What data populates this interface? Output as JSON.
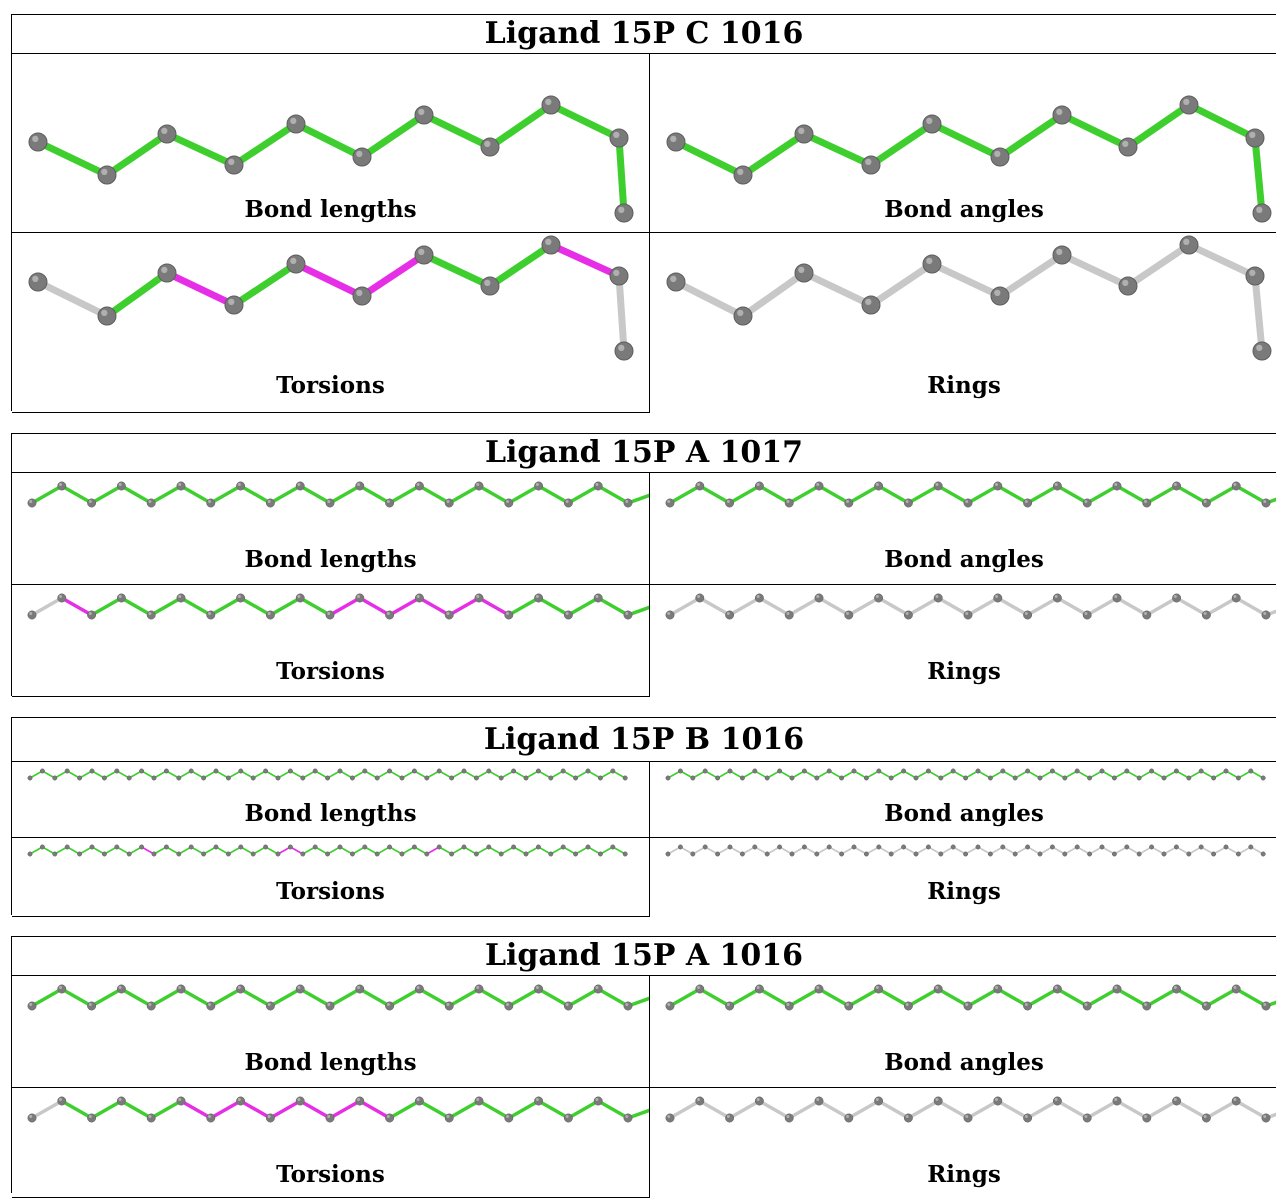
{
  "colors": {
    "ok": "#3ecf2e",
    "outlier": "#e62ee6",
    "neutral": "#c8c8c8",
    "atom": "#7a7a7a",
    "atom_highlight": "#b0b0b0"
  },
  "ligands": [
    {
      "title": "Ligand 15P C 1016",
      "panels": [
        {
          "label": "Bond lengths",
          "bond_colors": [
            "ok",
            "ok",
            "ok",
            "ok",
            "ok",
            "ok",
            "ok",
            "ok",
            "ok"
          ]
        },
        {
          "label": "Bond angles",
          "bond_colors": [
            "ok",
            "ok",
            "ok",
            "ok",
            "ok",
            "ok",
            "ok",
            "ok",
            "ok"
          ]
        },
        {
          "label": "Torsions",
          "bond_colors": [
            "neutral",
            "ok",
            "outlier",
            "ok",
            "outlier",
            "outlier",
            "ok",
            "ok",
            "outlier",
            "neutral"
          ]
        },
        {
          "label": "Rings",
          "bond_colors": [
            "neutral",
            "neutral",
            "neutral",
            "neutral",
            "neutral",
            "neutral",
            "neutral",
            "neutral",
            "neutral",
            "neutral"
          ]
        }
      ]
    },
    {
      "title": "Ligand 15P A 1017",
      "panels": [
        {
          "label": "Bond lengths",
          "bond_colors": [
            "ok"
          ]
        },
        {
          "label": "Bond angles",
          "bond_colors": [
            "ok"
          ]
        },
        {
          "label": "Torsions",
          "bond_colors": [
            "neutral",
            "outlier",
            "ok",
            "ok",
            "ok",
            "ok",
            "ok",
            "ok",
            "ok",
            "ok",
            "outlier",
            "outlier",
            "outlier",
            "outlier",
            "outlier",
            "outlier",
            "ok",
            "ok",
            "ok",
            "ok",
            "ok",
            "neutral"
          ]
        },
        {
          "label": "Rings",
          "bond_colors": [
            "neutral"
          ]
        }
      ]
    },
    {
      "title": "Ligand 15P B 1016",
      "panels": [
        {
          "label": "Bond lengths",
          "bond_colors": [
            "ok"
          ]
        },
        {
          "label": "Bond angles",
          "bond_colors": [
            "ok"
          ]
        },
        {
          "label": "Torsions",
          "bond_colors": [
            "ok",
            "ok",
            "ok",
            "ok",
            "ok",
            "ok",
            "ok",
            "ok",
            "ok",
            "outlier",
            "ok",
            "ok",
            "ok",
            "ok",
            "ok",
            "ok",
            "ok",
            "ok",
            "ok",
            "ok",
            "outlier",
            "outlier",
            "ok",
            "ok",
            "ok",
            "ok",
            "ok",
            "ok",
            "ok",
            "ok",
            "ok",
            "ok",
            "outlier",
            "ok"
          ]
        },
        {
          "label": "Rings",
          "bond_colors": [
            "neutral"
          ]
        }
      ]
    },
    {
      "title": "Ligand 15P A 1016",
      "panels": [
        {
          "label": "Bond lengths",
          "bond_colors": [
            "ok"
          ]
        },
        {
          "label": "Bond angles",
          "bond_colors": [
            "ok"
          ]
        },
        {
          "label": "Torsions",
          "bond_colors": [
            "neutral",
            "ok",
            "ok",
            "ok",
            "ok",
            "outlier",
            "outlier",
            "outlier",
            "outlier",
            "outlier",
            "outlier",
            "outlier",
            "ok",
            "ok",
            "ok",
            "ok",
            "ok",
            "ok",
            "ok",
            "ok",
            "ok",
            "neutral"
          ]
        },
        {
          "label": "Rings",
          "bond_colors": [
            "neutral"
          ]
        }
      ]
    }
  ]
}
